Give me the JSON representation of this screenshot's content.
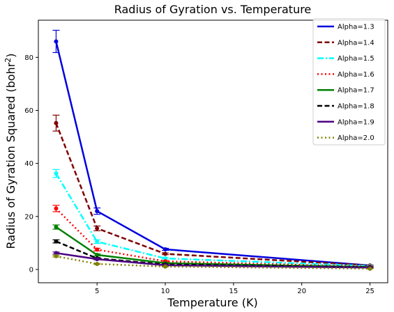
{
  "chart_data": {
    "type": "line",
    "title": "Radius of Gyration vs. Temperature",
    "xlabel": "Temperature (K)",
    "ylabel_main": "Radius of Gyration Squared (bohr",
    "ylabel_sup": "2",
    "ylabel_close": ")",
    "xlim": [
      0.7,
      26.3
    ],
    "ylim": [
      -5,
      94
    ],
    "xticks": [
      5,
      10,
      15,
      20,
      25
    ],
    "yticks": [
      0,
      20,
      40,
      60,
      80
    ],
    "grid": false,
    "legend_position": "top-right",
    "x": [
      2,
      5,
      10,
      25
    ],
    "series": [
      {
        "name": "Alpha=1.3",
        "color": "#0000dd",
        "dash": "solid",
        "values": [
          86.0,
          22.0,
          7.6,
          1.5
        ],
        "errors": [
          4.2,
          1.2,
          0.4,
          0.15
        ]
      },
      {
        "name": "Alpha=1.4",
        "color": "#7f0000",
        "dash": "dashed",
        "values": [
          55.2,
          15.5,
          5.9,
          1.5
        ],
        "errors": [
          3.0,
          0.9,
          0.3,
          0.1
        ]
      },
      {
        "name": "Alpha=1.5",
        "color": "#00ffff",
        "dash": "dashdot",
        "values": [
          36.2,
          10.5,
          4.2,
          1.3
        ],
        "errors": [
          1.5,
          0.7,
          0.3,
          0.1
        ]
      },
      {
        "name": "Alpha=1.6",
        "color": "#ff0000",
        "dash": "dotted",
        "values": [
          23.0,
          7.5,
          3.1,
          1.1
        ],
        "errors": [
          1.2,
          0.5,
          0.2,
          0.1
        ]
      },
      {
        "name": "Alpha=1.7",
        "color": "#008000",
        "dash": "solid",
        "values": [
          16.0,
          5.5,
          2.4,
          0.9
        ],
        "errors": [
          0.8,
          0.4,
          0.2,
          0.1
        ]
      },
      {
        "name": "Alpha=1.8",
        "color": "#000000",
        "dash": "dashed",
        "values": [
          10.6,
          4.2,
          1.9,
          0.8
        ],
        "errors": [
          0.6,
          0.3,
          0.15,
          0.1
        ]
      },
      {
        "name": "Alpha=1.9",
        "color": "#4b0082",
        "dash": "solid",
        "values": [
          6.2,
          3.9,
          1.6,
          0.7
        ],
        "errors": [
          0.4,
          0.25,
          0.1,
          0.1
        ]
      },
      {
        "name": "Alpha=2.0",
        "color": "#808000",
        "dash": "dotted",
        "values": [
          5.0,
          2.1,
          1.1,
          0.3
        ],
        "errors": [
          0.3,
          0.2,
          0.1,
          0.05
        ]
      }
    ]
  }
}
